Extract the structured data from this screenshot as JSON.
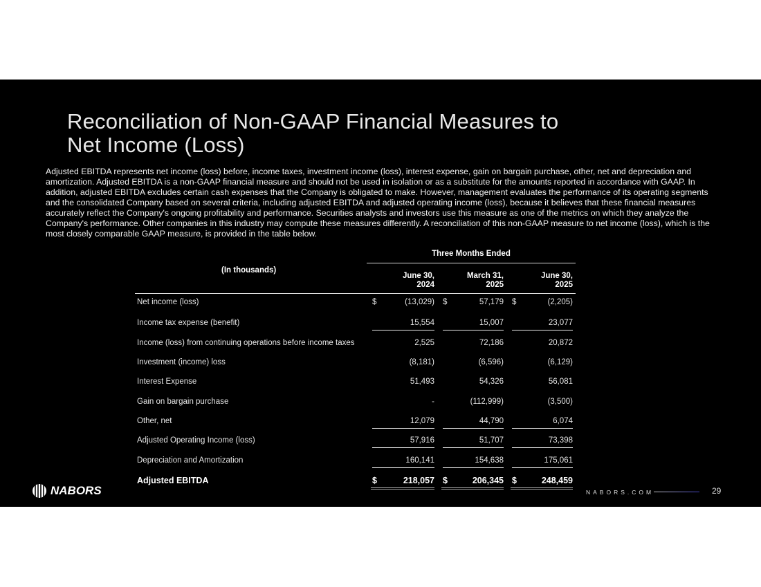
{
  "title": "Reconciliation of Non-GAAP Financial Measures to Net Income (Loss)",
  "title_lines": [
    "Reconciliation of Non-GAAP Financial Measures to",
    "Net Income (Loss)"
  ],
  "description": "Adjusted EBITDA represents net income (loss) before, income taxes, investment income (loss), interest expense, gain on bargain purchase, other, net and depreciation and amortization. Adjusted EBITDA is a non-GAAP financial measure and should not be used in isolation or as a substitute for the amounts reported in accordance with GAAP. In addition, adjusted EBITDA excludes certain cash expenses that the Company is obligated to make. However, management evaluates the performance of its operating segments and the consolidated Company based on several criteria, including adjusted EBITDA and adjusted operating income (loss), because it believes that these financial measures accurately reflect the Company's ongoing profitability and performance.  Securities analysts and investors use this measure as one of the metrics on which they analyze the Company's performance.  Other companies in this industry may compute these measures differently. A reconciliation of this non-GAAP measure to net income (loss), which is the most closely comparable GAAP measure, is provided in the table below.",
  "table": {
    "units_label": "(In thousands)",
    "group_header": "Three Months Ended",
    "columns": [
      {
        "line1": "June 30,",
        "line2": "2024"
      },
      {
        "line1": "March 31,",
        "line2": "2025"
      },
      {
        "line1": "June 30,",
        "line2": "2025"
      }
    ],
    "currency": "$",
    "rows": [
      {
        "label": "Net income (loss)",
        "values": [
          "(13,029)",
          "57,179",
          "(2,205)"
        ],
        "currency": true,
        "underline": false
      },
      {
        "label": "Income tax expense (benefit)",
        "values": [
          "15,554",
          "15,007",
          "23,077"
        ],
        "underline": true
      },
      {
        "label": "Income (loss) from continuing operations before income taxes",
        "values": [
          "2,525",
          "72,186",
          "20,872"
        ]
      },
      {
        "label": "Investment (income) loss",
        "values": [
          "(8,181)",
          "(6,596)",
          "(6,129)"
        ]
      },
      {
        "label": "Interest Expense",
        "values": [
          "51,493",
          "54,326",
          "56,081"
        ]
      },
      {
        "label": "Gain on bargain purchase",
        "values": [
          "-",
          "(112,999)",
          "(3,500)"
        ]
      },
      {
        "label": "Other, net",
        "values": [
          "12,079",
          "44,790",
          "6,074"
        ],
        "underline": true
      },
      {
        "label": "Adjusted Operating Income (loss)",
        "values": [
          "57,916",
          "51,707",
          "73,398"
        ],
        "underline": true
      },
      {
        "label": "Depreciation and Amortization",
        "values": [
          "160,141",
          "154,638",
          "175,061"
        ],
        "underline": true
      },
      {
        "label": "Adjusted EBITDA",
        "values": [
          "218,057",
          "206,345",
          "248,459"
        ],
        "currency": true,
        "total": true
      }
    ]
  },
  "footer": {
    "logo_text": "NABORS",
    "url": "NABORS.COM",
    "page_number": "29"
  }
}
